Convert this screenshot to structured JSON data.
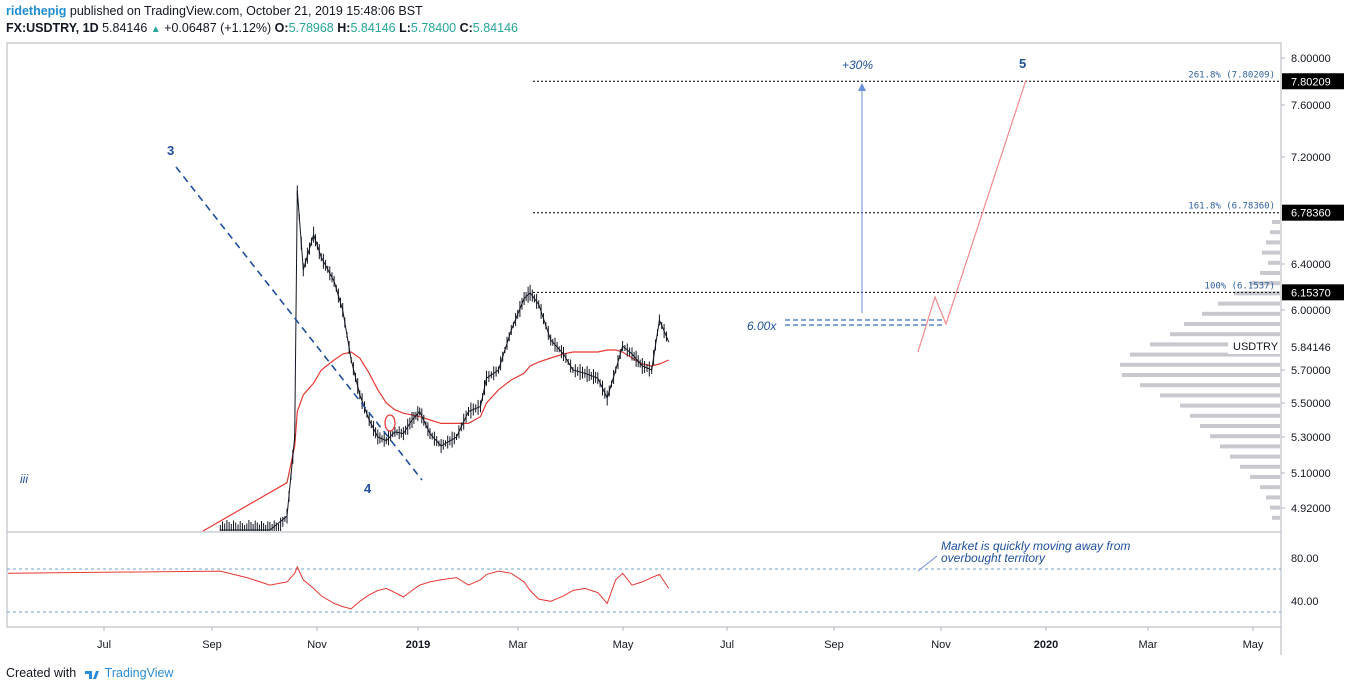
{
  "header": {
    "username": "ridethepig",
    "published_text": "published on TradingView.com, October 21, 2019 15:48:06 BST",
    "symbol_line": "FX:USDTRY, 1D",
    "last": "5.84146",
    "change": "+0.06487 (+1.12%)",
    "o_label": "O:",
    "o_value": "5.78968",
    "h_label": "H:",
    "h_value": "5.84146",
    "l_label": "L:",
    "l_value": "5.78400",
    "c_label": "C:",
    "c_value": "5.84146"
  },
  "footer": {
    "created_with": "Created with",
    "brand": "TradingView"
  },
  "colors": {
    "price": "#131722",
    "ma": "#e53935",
    "rsi": "#e53935",
    "projection": "#f48a8a",
    "annotation": "#1e4f9c",
    "fib": "#000000"
  },
  "chart_data": [
    {
      "type": "line",
      "title": "",
      "series_name": "USDTRY",
      "x": [
        "2018-05-15",
        "2018-06-15",
        "2018-07-12",
        "2018-08-01",
        "2018-08-10",
        "2018-08-13",
        "2018-08-20",
        "2018-09-01",
        "2018-09-10",
        "2018-09-25",
        "2018-10-05",
        "2018-10-15",
        "2018-10-25",
        "2018-11-05",
        "2018-11-15",
        "2018-11-25",
        "2018-12-05",
        "2018-12-15",
        "2018-12-25",
        "2019-01-03",
        "2019-01-15",
        "2019-01-28",
        "2019-02-15",
        "2019-03-01",
        "2019-03-15",
        "2019-03-22",
        "2019-04-05",
        "2019-04-20",
        "2019-05-05",
        "2019-05-12",
        "2019-05-22",
        "2019-06-05",
        "2019-06-20",
        "2019-07-01",
        "2019-07-15",
        "2019-07-30",
        "2019-08-10",
        "2019-08-20",
        "2019-08-28",
        "2019-09-08",
        "2019-09-20",
        "2019-10-01",
        "2019-10-10",
        "2019-10-21"
      ],
      "values": [
        4.75,
        4.72,
        4.73,
        4.87,
        5.3,
        6.95,
        6.35,
        6.62,
        6.45,
        6.25,
        6.0,
        5.75,
        5.55,
        5.4,
        5.3,
        5.28,
        5.33,
        5.32,
        5.4,
        5.45,
        5.32,
        5.25,
        5.3,
        5.45,
        5.48,
        5.65,
        5.7,
        5.9,
        6.1,
        6.15,
        6.05,
        5.85,
        5.78,
        5.7,
        5.68,
        5.65,
        5.53,
        5.7,
        5.82,
        5.78,
        5.72,
        5.7,
        5.95,
        5.84
      ],
      "ma_values": [
        4.2,
        4.35,
        4.7,
        5.05,
        5.25,
        5.45,
        5.55,
        5.62,
        5.7,
        5.75,
        5.78,
        5.79,
        5.76,
        5.68,
        5.58,
        5.5,
        5.46,
        5.44,
        5.43,
        5.42,
        5.4,
        5.38,
        5.38,
        5.38,
        5.42,
        5.5,
        5.58,
        5.64,
        5.68,
        5.72,
        5.74,
        5.76,
        5.78,
        5.79,
        5.79,
        5.79,
        5.8,
        5.8,
        5.79,
        5.76,
        5.73,
        5.72,
        5.73,
        5.75
      ],
      "y_ticks": [
        "8.00000",
        "7.60000",
        "7.20000",
        "6.40000",
        "6.00000",
        "5.70000",
        "5.50000",
        "5.30000",
        "5.10000",
        "4.92000"
      ],
      "x_ticks": [
        "Jul",
        "Sep",
        "Nov",
        "2019",
        "Mar",
        "May",
        "Jul",
        "Sep",
        "Nov",
        "2020",
        "Mar",
        "May"
      ],
      "last_price_label": "5.84146",
      "symbol_label": "USDTRY",
      "fib_levels": [
        {
          "label": "261.8% (7.80209)",
          "axis_label": "7.80209",
          "value": 7.80209
        },
        {
          "label": "161.8% (6.78360)",
          "axis_label": "6.78360",
          "value": 6.7836
        },
        {
          "label": "100% (6.1537)",
          "axis_label": "6.15370",
          "value": 6.1537
        }
      ],
      "annotations": {
        "wave_iii": "iii",
        "wave_3": "3",
        "wave_4": "4",
        "wave_5": "5",
        "target_pct": "+30%",
        "range_label": "6.00x"
      }
    },
    {
      "type": "line",
      "title": "",
      "indicator": "RSI",
      "values": [
        68,
        62,
        55,
        58,
        66,
        72,
        60,
        52,
        45,
        38,
        35,
        33,
        40,
        46,
        50,
        52,
        48,
        44,
        50,
        55,
        58,
        60,
        62,
        55,
        60,
        65,
        68,
        66,
        58,
        50,
        42,
        40,
        45,
        50,
        52,
        48,
        38,
        60,
        66,
        55,
        58,
        62,
        65,
        52
      ],
      "y_ticks": [
        "80.00",
        "40.00"
      ],
      "bands": [
        70,
        30
      ],
      "note": "Market is quickly moving away from overbought territory"
    }
  ]
}
